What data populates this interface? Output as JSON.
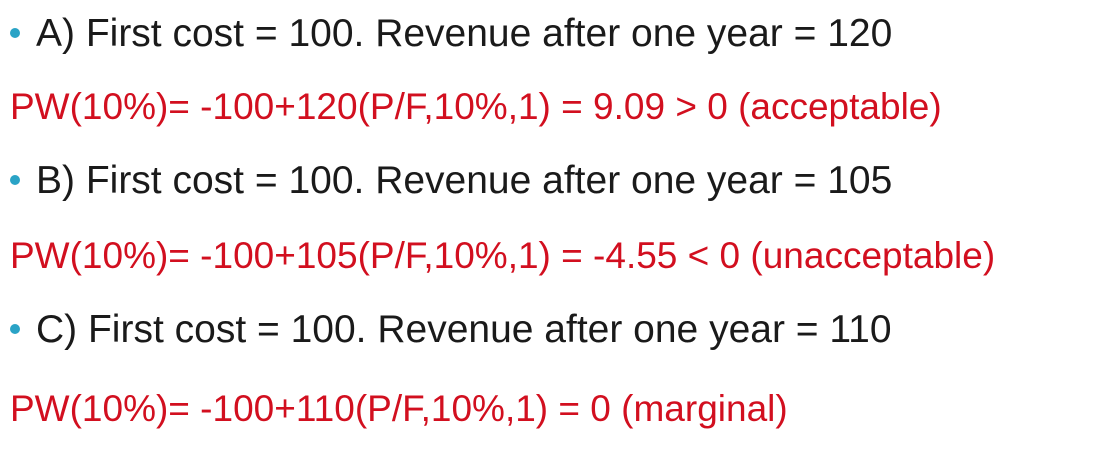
{
  "items": [
    {
      "statement": "A) First cost = 100. Revenue after one year = 120",
      "result": "PW(10%)= -100+120(P/F,10%,1) = 9.09 > 0 (acceptable)"
    },
    {
      "statement": "B) First cost = 100. Revenue after one year = 105",
      "result": "PW(10%)= -100+105(P/F,10%,1) = -4.55 < 0 (unacceptable)"
    },
    {
      "statement": "C) First cost = 100. Revenue after one year = 110",
      "result": "PW(10%)= -100+110(P/F,10%,1) = 0 (marginal)"
    }
  ],
  "colors": {
    "bullet": "#2aa3c6",
    "result_text": "#d20f1f",
    "statement_text": "#1a1a1a"
  }
}
